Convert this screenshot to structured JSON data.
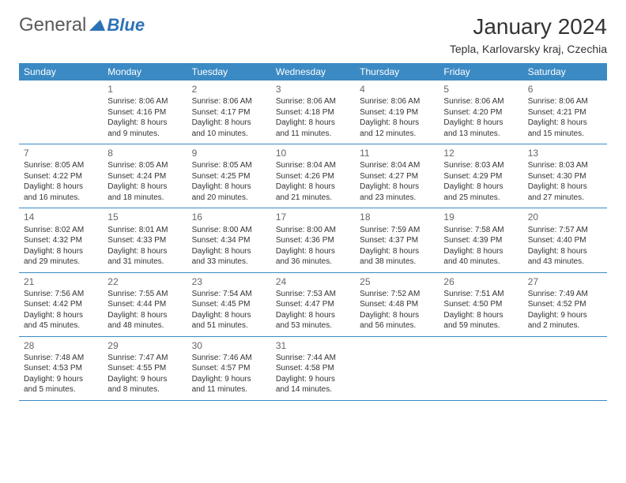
{
  "brand": {
    "part1": "General",
    "part2": "Blue"
  },
  "title": "January 2024",
  "location": "Tepla, Karlovarsky kraj, Czechia",
  "colors": {
    "header_bg": "#3b8ac4",
    "rule": "#3b8ac4",
    "brand_blue": "#2d72b5"
  },
  "weekdays": [
    "Sunday",
    "Monday",
    "Tuesday",
    "Wednesday",
    "Thursday",
    "Friday",
    "Saturday"
  ],
  "weeks": [
    [
      null,
      {
        "n": "1",
        "sr": "Sunrise: 8:06 AM",
        "ss": "Sunset: 4:16 PM",
        "d1": "Daylight: 8 hours",
        "d2": "and 9 minutes."
      },
      {
        "n": "2",
        "sr": "Sunrise: 8:06 AM",
        "ss": "Sunset: 4:17 PM",
        "d1": "Daylight: 8 hours",
        "d2": "and 10 minutes."
      },
      {
        "n": "3",
        "sr": "Sunrise: 8:06 AM",
        "ss": "Sunset: 4:18 PM",
        "d1": "Daylight: 8 hours",
        "d2": "and 11 minutes."
      },
      {
        "n": "4",
        "sr": "Sunrise: 8:06 AM",
        "ss": "Sunset: 4:19 PM",
        "d1": "Daylight: 8 hours",
        "d2": "and 12 minutes."
      },
      {
        "n": "5",
        "sr": "Sunrise: 8:06 AM",
        "ss": "Sunset: 4:20 PM",
        "d1": "Daylight: 8 hours",
        "d2": "and 13 minutes."
      },
      {
        "n": "6",
        "sr": "Sunrise: 8:06 AM",
        "ss": "Sunset: 4:21 PM",
        "d1": "Daylight: 8 hours",
        "d2": "and 15 minutes."
      }
    ],
    [
      {
        "n": "7",
        "sr": "Sunrise: 8:05 AM",
        "ss": "Sunset: 4:22 PM",
        "d1": "Daylight: 8 hours",
        "d2": "and 16 minutes."
      },
      {
        "n": "8",
        "sr": "Sunrise: 8:05 AM",
        "ss": "Sunset: 4:24 PM",
        "d1": "Daylight: 8 hours",
        "d2": "and 18 minutes."
      },
      {
        "n": "9",
        "sr": "Sunrise: 8:05 AM",
        "ss": "Sunset: 4:25 PM",
        "d1": "Daylight: 8 hours",
        "d2": "and 20 minutes."
      },
      {
        "n": "10",
        "sr": "Sunrise: 8:04 AM",
        "ss": "Sunset: 4:26 PM",
        "d1": "Daylight: 8 hours",
        "d2": "and 21 minutes."
      },
      {
        "n": "11",
        "sr": "Sunrise: 8:04 AM",
        "ss": "Sunset: 4:27 PM",
        "d1": "Daylight: 8 hours",
        "d2": "and 23 minutes."
      },
      {
        "n": "12",
        "sr": "Sunrise: 8:03 AM",
        "ss": "Sunset: 4:29 PM",
        "d1": "Daylight: 8 hours",
        "d2": "and 25 minutes."
      },
      {
        "n": "13",
        "sr": "Sunrise: 8:03 AM",
        "ss": "Sunset: 4:30 PM",
        "d1": "Daylight: 8 hours",
        "d2": "and 27 minutes."
      }
    ],
    [
      {
        "n": "14",
        "sr": "Sunrise: 8:02 AM",
        "ss": "Sunset: 4:32 PM",
        "d1": "Daylight: 8 hours",
        "d2": "and 29 minutes."
      },
      {
        "n": "15",
        "sr": "Sunrise: 8:01 AM",
        "ss": "Sunset: 4:33 PM",
        "d1": "Daylight: 8 hours",
        "d2": "and 31 minutes."
      },
      {
        "n": "16",
        "sr": "Sunrise: 8:00 AM",
        "ss": "Sunset: 4:34 PM",
        "d1": "Daylight: 8 hours",
        "d2": "and 33 minutes."
      },
      {
        "n": "17",
        "sr": "Sunrise: 8:00 AM",
        "ss": "Sunset: 4:36 PM",
        "d1": "Daylight: 8 hours",
        "d2": "and 36 minutes."
      },
      {
        "n": "18",
        "sr": "Sunrise: 7:59 AM",
        "ss": "Sunset: 4:37 PM",
        "d1": "Daylight: 8 hours",
        "d2": "and 38 minutes."
      },
      {
        "n": "19",
        "sr": "Sunrise: 7:58 AM",
        "ss": "Sunset: 4:39 PM",
        "d1": "Daylight: 8 hours",
        "d2": "and 40 minutes."
      },
      {
        "n": "20",
        "sr": "Sunrise: 7:57 AM",
        "ss": "Sunset: 4:40 PM",
        "d1": "Daylight: 8 hours",
        "d2": "and 43 minutes."
      }
    ],
    [
      {
        "n": "21",
        "sr": "Sunrise: 7:56 AM",
        "ss": "Sunset: 4:42 PM",
        "d1": "Daylight: 8 hours",
        "d2": "and 45 minutes."
      },
      {
        "n": "22",
        "sr": "Sunrise: 7:55 AM",
        "ss": "Sunset: 4:44 PM",
        "d1": "Daylight: 8 hours",
        "d2": "and 48 minutes."
      },
      {
        "n": "23",
        "sr": "Sunrise: 7:54 AM",
        "ss": "Sunset: 4:45 PM",
        "d1": "Daylight: 8 hours",
        "d2": "and 51 minutes."
      },
      {
        "n": "24",
        "sr": "Sunrise: 7:53 AM",
        "ss": "Sunset: 4:47 PM",
        "d1": "Daylight: 8 hours",
        "d2": "and 53 minutes."
      },
      {
        "n": "25",
        "sr": "Sunrise: 7:52 AM",
        "ss": "Sunset: 4:48 PM",
        "d1": "Daylight: 8 hours",
        "d2": "and 56 minutes."
      },
      {
        "n": "26",
        "sr": "Sunrise: 7:51 AM",
        "ss": "Sunset: 4:50 PM",
        "d1": "Daylight: 8 hours",
        "d2": "and 59 minutes."
      },
      {
        "n": "27",
        "sr": "Sunrise: 7:49 AM",
        "ss": "Sunset: 4:52 PM",
        "d1": "Daylight: 9 hours",
        "d2": "and 2 minutes."
      }
    ],
    [
      {
        "n": "28",
        "sr": "Sunrise: 7:48 AM",
        "ss": "Sunset: 4:53 PM",
        "d1": "Daylight: 9 hours",
        "d2": "and 5 minutes."
      },
      {
        "n": "29",
        "sr": "Sunrise: 7:47 AM",
        "ss": "Sunset: 4:55 PM",
        "d1": "Daylight: 9 hours",
        "d2": "and 8 minutes."
      },
      {
        "n": "30",
        "sr": "Sunrise: 7:46 AM",
        "ss": "Sunset: 4:57 PM",
        "d1": "Daylight: 9 hours",
        "d2": "and 11 minutes."
      },
      {
        "n": "31",
        "sr": "Sunrise: 7:44 AM",
        "ss": "Sunset: 4:58 PM",
        "d1": "Daylight: 9 hours",
        "d2": "and 14 minutes."
      },
      null,
      null,
      null
    ]
  ]
}
